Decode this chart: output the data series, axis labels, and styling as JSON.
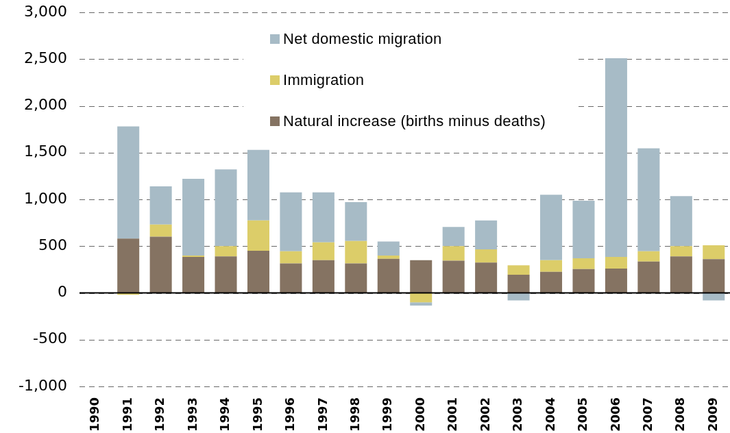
{
  "chart_data": {
    "type": "bar",
    "stacked": true,
    "categories": [
      "1990",
      "1991",
      "1992",
      "1993",
      "1994",
      "1995",
      "1996",
      "1997",
      "1998",
      "1999",
      "2000",
      "2001",
      "2002",
      "2003",
      "2004",
      "2005",
      "2006",
      "2007",
      "2008",
      "2009"
    ],
    "series": [
      {
        "name": "Natural increase (births minus deaths)",
        "color": "#857362",
        "values": [
          null,
          580,
          600,
          385,
          390,
          450,
          315,
          350,
          315,
          365,
          350,
          345,
          325,
          195,
          225,
          255,
          260,
          335,
          390,
          360
        ]
      },
      {
        "name": "Immigration",
        "color": "#dccd69",
        "values": [
          null,
          -20,
          130,
          15,
          110,
          325,
          130,
          190,
          240,
          35,
          -100,
          155,
          140,
          100,
          125,
          115,
          125,
          110,
          110,
          150
        ]
      },
      {
        "name": "Net domestic migration",
        "color": "#a7bbc6",
        "values": [
          null,
          1200,
          410,
          820,
          820,
          755,
          630,
          535,
          415,
          150,
          -35,
          205,
          310,
          -80,
          700,
          615,
          2125,
          1100,
          535,
          -80
        ]
      }
    ],
    "ylim": [
      -1000,
      3000
    ],
    "yticks": [
      {
        "value": -1000,
        "label": "-1,000"
      },
      -500,
      0,
      500,
      {
        "value": 1000,
        "label": "1,000"
      },
      {
        "value": 1500,
        "label": "1,500"
      },
      {
        "value": 2000,
        "label": "2,000"
      },
      {
        "value": 2500,
        "label": "2,500"
      },
      {
        "value": 3000,
        "label": "3,000"
      }
    ],
    "grid": "y",
    "legend": "top"
  }
}
